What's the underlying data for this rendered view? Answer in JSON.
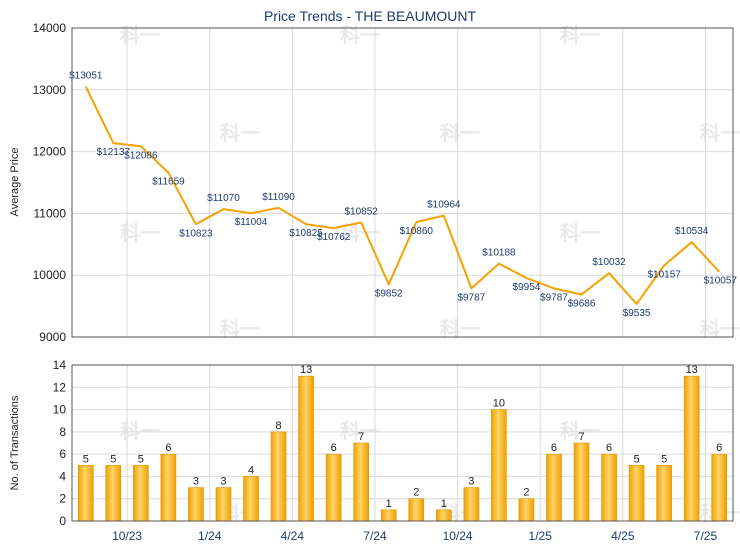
{
  "chart_data": [
    {
      "type": "line",
      "title": "Price Trends - THE BEAUMOUNT",
      "xlabel": "",
      "ylabel": "Average Price",
      "ylim": [
        9000,
        14000
      ],
      "yticks": [
        "9000",
        "10000",
        "11000",
        "12000",
        "13000",
        "14000"
      ],
      "grid": true,
      "color": "#f5a200",
      "series": [
        {
          "values": [
            13051,
            12137,
            12086,
            11659,
            10823,
            11070,
            11004,
            11090,
            10825,
            10762,
            10852,
            9852,
            10860,
            10964,
            9787,
            10188,
            9954,
            9787,
            9686,
            10032,
            9535,
            10157,
            10534,
            10057
          ],
          "labels": [
            "$13051",
            "$12137",
            "$12086",
            "$11659",
            "$10823",
            "$11070",
            "$11004",
            "$11090",
            "$10825",
            "$10762",
            "$10852",
            "$9852",
            "$10860",
            "$10964",
            "$9787",
            "$10188",
            "$9954",
            "$9787",
            "$9686",
            "$10032",
            "$9535",
            "$10157",
            "$10534",
            "$10057"
          ]
        }
      ]
    },
    {
      "type": "bar",
      "xlabel": "",
      "ylabel": "No. of Transactions",
      "ylim": [
        0,
        14
      ],
      "yticks": [
        "0",
        "2",
        "4",
        "6",
        "8",
        "10",
        "12",
        "14"
      ],
      "grid": true,
      "color": "#f5a200",
      "x_tick_labels": [
        "10/23",
        "1/24",
        "4/24",
        "7/24",
        "10/24",
        "1/25",
        "4/25",
        "7/25"
      ],
      "x_tick_positions": [
        2,
        5,
        8,
        11,
        14,
        17,
        20,
        23
      ],
      "values": [
        5,
        5,
        5,
        6,
        3,
        3,
        4,
        8,
        13,
        6,
        7,
        1,
        2,
        1,
        3,
        10,
        2,
        6,
        7,
        6,
        5,
        5,
        13,
        6
      ],
      "labels": [
        "5",
        "5",
        "5",
        "6",
        "3",
        "3",
        "4",
        "8",
        "13",
        "6",
        "7",
        "1",
        "2",
        "1",
        "3",
        "10",
        "2",
        "6",
        "7",
        "6",
        "5",
        "5",
        "13",
        "6"
      ]
    }
  ],
  "watermark": "科一"
}
